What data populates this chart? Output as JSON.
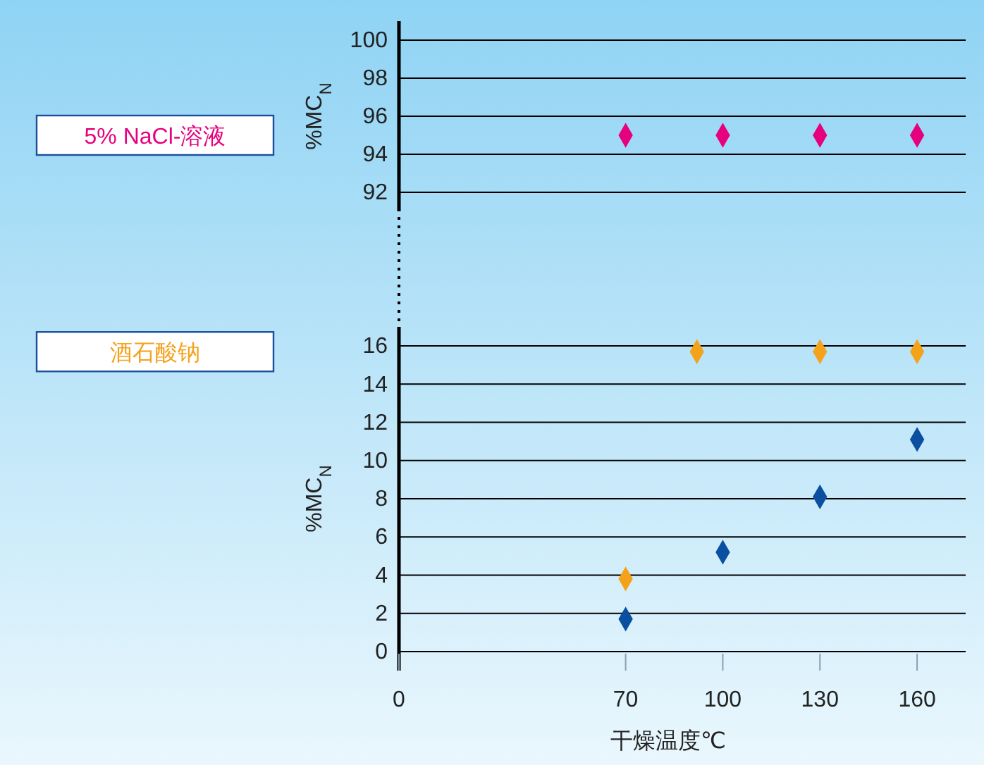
{
  "chart_data": [
    {
      "type": "scatter",
      "ylabel": "%MC$_{N}$",
      "xlim": [
        0,
        175
      ],
      "ylim": [
        91,
        101
      ],
      "yticks": [
        92,
        94,
        96,
        98,
        100
      ],
      "tick_labels": "y",
      "grid": "y",
      "marker": "diamond",
      "legend": "left",
      "series": [
        {
          "name": "5% NaCl-溶液",
          "color": "#e6007e",
          "x": [
            70,
            100,
            130,
            160
          ],
          "values": [
            95,
            95,
            95,
            95
          ]
        }
      ]
    },
    {
      "type": "scatter",
      "ylabel": "%MC$_{N}$",
      "xlabel": "干燥温度℃",
      "xlim": [
        0,
        175
      ],
      "ylim": [
        -1,
        17
      ],
      "xticks": [
        0,
        70,
        100,
        130,
        160
      ],
      "yticks": [
        0,
        2,
        4,
        6,
        8,
        10,
        12,
        14,
        16
      ],
      "grid": "y",
      "marker": "diamond",
      "legend": "left",
      "series": [
        {
          "name": "酒石酸钠",
          "color": "#f5a21b",
          "x": [
            70,
            92,
            130,
            160
          ],
          "values": [
            3.8,
            15.7,
            15.7,
            15.7
          ]
        },
        {
          "color": "#0b4fa0",
          "x": [
            70,
            100,
            130,
            160
          ],
          "values": [
            1.7,
            5.2,
            8.1,
            11.1
          ]
        }
      ]
    }
  ]
}
